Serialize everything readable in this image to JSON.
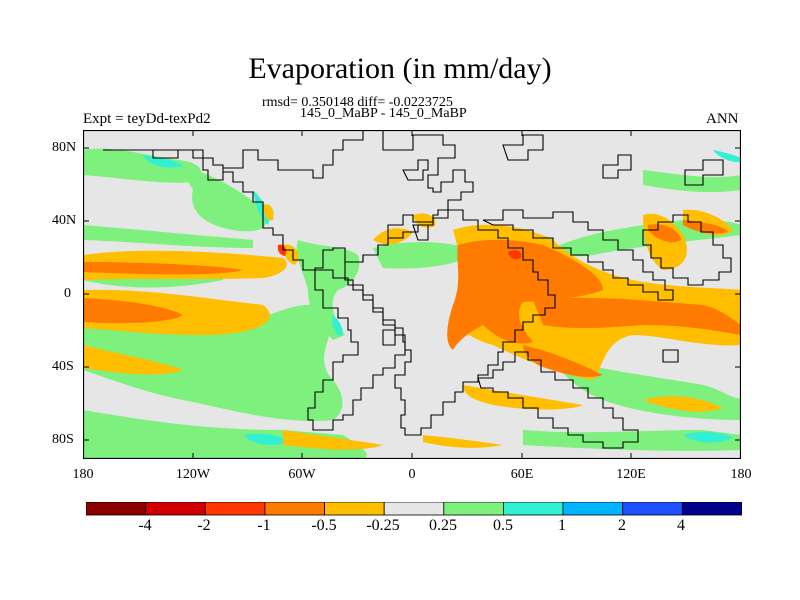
{
  "header": {
    "title": "Evaporation (in mm/day)",
    "stats": "rmsd= 0.350148 diff= -0.0223725",
    "subtitle": "145_0_MaBP - 145_0_MaBP",
    "experiment": "Expt = teyDd-texPd2",
    "season": "ANN"
  },
  "axes": {
    "y_ticks": [
      "80N",
      "40N",
      "0",
      "40S",
      "80S"
    ],
    "x_ticks": [
      "180",
      "120W",
      "60W",
      "0",
      "60E",
      "120E",
      "180"
    ]
  },
  "colorbar": {
    "labels": [
      "-4",
      "-2",
      "-1",
      "-0.5",
      "-0.25",
      "0.25",
      "0.5",
      "1",
      "2",
      "4"
    ],
    "colors": [
      "#8b0000",
      "#d10000",
      "#ff3800",
      "#ff7a00",
      "#ffbe00",
      "#e6e6e6",
      "#7df07d",
      "#32f0d2",
      "#00b4ff",
      "#1e50ff",
      "#00008c"
    ]
  },
  "colors": {
    "neutral": "#e6e6e6",
    "coastline": "#000000"
  }
}
